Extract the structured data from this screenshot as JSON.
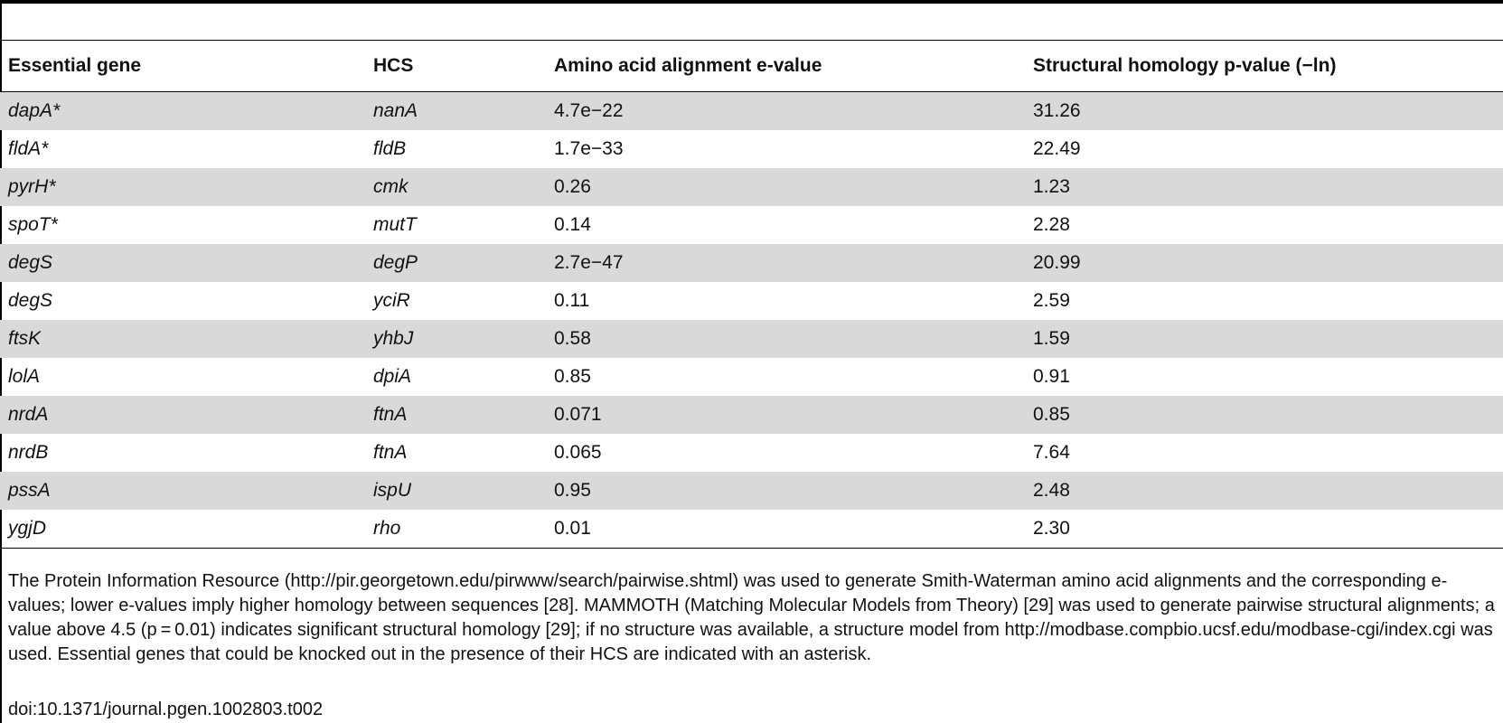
{
  "table": {
    "headers": [
      "Essential gene",
      "HCS",
      "Amino acid alignment e-value",
      "Structural homology p-value (−ln)"
    ],
    "rows": [
      [
        "dapA*",
        "nanA",
        "4.7e−22",
        "31.26"
      ],
      [
        "fldA*",
        "fldB",
        "1.7e−33",
        "22.49"
      ],
      [
        "pyrH*",
        "cmk",
        "0.26",
        "1.23"
      ],
      [
        "spoT*",
        "mutT",
        "0.14",
        "2.28"
      ],
      [
        "degS",
        "degP",
        "2.7e−47",
        "20.99"
      ],
      [
        "degS",
        "yciR",
        "0.11",
        "2.59"
      ],
      [
        "ftsK",
        "yhbJ",
        "0.58",
        "1.59"
      ],
      [
        "lolA",
        "dpiA",
        "0.85",
        "0.91"
      ],
      [
        "nrdA",
        "ftnA",
        "0.071",
        "0.85"
      ],
      [
        "nrdB",
        "ftnA",
        "0.065",
        "7.64"
      ],
      [
        "pssA",
        "ispU",
        "0.95",
        "2.48"
      ],
      [
        "ygjD",
        "rho",
        "0.01",
        "2.30"
      ]
    ]
  },
  "footnote": "The Protein Information Resource (http://pir.georgetown.edu/pirwww/search/pairwise.shtml) was used to generate Smith-Waterman amino acid alignments and the corresponding e-values; lower e-values imply higher homology between sequences [28]. MAMMOTH (Matching Molecular Models from Theory) [29] was used to generate pairwise structural alignments; a value above 4.5 (p = 0.01) indicates significant structural homology [29]; if no structure was available, a structure model from http://modbase.compbio.ucsf.edu/modbase-cgi/index.cgi was used. Essential genes that could be knocked out in the presence of their HCS are indicated with an asterisk.",
  "doi": "doi:10.1371/journal.pgen.1002803.t002",
  "colors": {
    "row_shade": "#d9d9d9",
    "rule": "#000000",
    "text": "#111111"
  }
}
